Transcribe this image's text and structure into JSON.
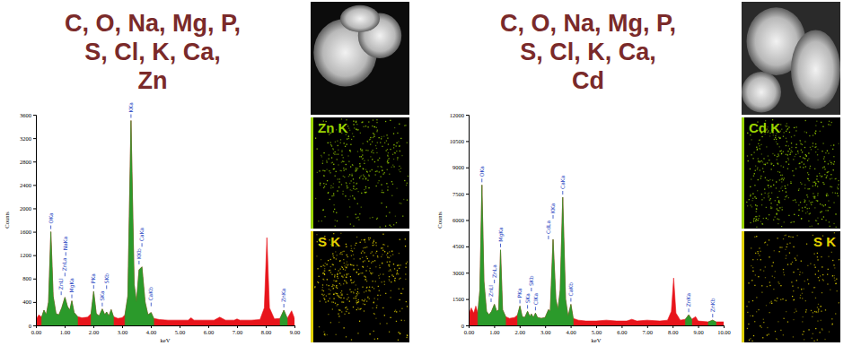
{
  "chart_data": [
    {
      "type": "area",
      "title": [
        "C, O, Na, Mg, P,",
        "S, Cl, K, Ca,",
        "Zn"
      ],
      "xlabel": "keV",
      "ylabel": "Counts",
      "x": [
        0,
        0.1,
        0.2,
        0.28,
        0.36,
        0.44,
        0.52,
        0.6,
        0.7,
        0.8,
        0.9,
        1.01,
        1.1,
        1.18,
        1.25,
        1.33,
        1.45,
        1.6,
        1.8,
        1.92,
        2.01,
        2.1,
        2.2,
        2.31,
        2.4,
        2.46,
        2.54,
        2.62,
        2.7,
        2.85,
        3.0,
        3.1,
        3.2,
        3.31,
        3.42,
        3.5,
        3.59,
        3.69,
        3.8,
        3.9,
        4.01,
        4.1,
        4.3,
        4.6,
        5.0,
        5.3,
        5.4,
        5.5,
        5.8,
        6.2,
        6.4,
        6.6,
        6.9,
        7.0,
        7.1,
        7.5,
        7.8,
        7.95,
        8.04,
        8.13,
        8.3,
        8.5,
        8.63,
        8.75,
        8.9,
        9.0
      ],
      "series": [
        {
          "color": "#e8141b",
          "values": [
            100,
            180,
            140,
            260,
            180,
            400,
            1600,
            500,
            200,
            180,
            300,
            480,
            320,
            260,
            420,
            220,
            150,
            130,
            140,
            200,
            580,
            200,
            160,
            280,
            180,
            230,
            160,
            270,
            150,
            120,
            130,
            180,
            500,
            3500,
            700,
            400,
            950,
            1000,
            400,
            180,
            220,
            120,
            100,
            90,
            90,
            90,
            130,
            90,
            90,
            90,
            140,
            90,
            90,
            110,
            90,
            90,
            100,
            300,
            1500,
            300,
            110,
            120,
            260,
            120,
            250,
            120
          ]
        },
        {
          "color": "#2b9a2b",
          "values": [
            null,
            null,
            140,
            260,
            180,
            400,
            1600,
            500,
            200,
            180,
            300,
            480,
            320,
            260,
            420,
            220,
            150,
            null,
            null,
            200,
            580,
            200,
            160,
            280,
            180,
            230,
            160,
            270,
            150,
            null,
            null,
            180,
            500,
            3500,
            700,
            400,
            950,
            1000,
            400,
            180,
            220,
            120,
            null,
            null,
            null,
            null,
            null,
            null,
            null,
            null,
            null,
            null,
            null,
            null,
            null,
            null,
            null,
            null,
            null,
            null,
            null,
            120,
            260,
            120,
            null,
            null
          ]
        }
      ],
      "xlim": [
        0,
        9
      ],
      "xticks": [
        {
          "value": 0,
          "label": "0.00"
        },
        {
          "value": 1,
          "label": "1.00"
        },
        {
          "value": 2,
          "label": "2.00"
        },
        {
          "value": 3,
          "label": "3.00"
        },
        {
          "value": 4,
          "label": "4.00"
        },
        {
          "value": 5,
          "label": "5.00"
        },
        {
          "value": 6,
          "label": "6.00"
        },
        {
          "value": 7,
          "label": "7.00"
        },
        {
          "value": 8,
          "label": "8.00"
        },
        {
          "value": 9,
          "label": "9.00"
        }
      ],
      "ylim": [
        0,
        3600
      ],
      "yticks": [
        0,
        400,
        800,
        1200,
        1600,
        2000,
        2400,
        2800,
        3200,
        3600
      ],
      "grid": false,
      "annotations": [
        {
          "text": "OKa",
          "x": 0.52
        },
        {
          "text": "ZnLl",
          "x": 0.88
        },
        {
          "text": "ZnLa",
          "x": 1.01
        },
        {
          "text": "NaKa",
          "x": 1.04
        },
        {
          "text": "MgKa",
          "x": 1.25
        },
        {
          "text": "PKa",
          "x": 2.01
        },
        {
          "text": "SKa",
          "x": 2.31
        },
        {
          "text": "SKb",
          "x": 2.46
        },
        {
          "text": "KKa",
          "x": 3.31
        },
        {
          "text": "KKb",
          "x": 3.59
        },
        {
          "text": "CaKa",
          "x": 3.69
        },
        {
          "text": "CaKb",
          "x": 4.01
        },
        {
          "text": "ZnKa",
          "x": 8.63
        }
      ],
      "maps": [
        {
          "label": "Zn K",
          "color": "#9ad400"
        },
        {
          "label": "S K",
          "color": "#e0d000"
        }
      ]
    },
    {
      "type": "area",
      "title": [
        "C, O, Na, Mg, P,",
        "S, Cl, K, Ca,",
        "Cd"
      ],
      "xlabel": "keV",
      "ylabel": "Counts",
      "x": [
        0,
        0.1,
        0.2,
        0.28,
        0.36,
        0.44,
        0.52,
        0.6,
        0.7,
        0.8,
        0.9,
        1.01,
        1.1,
        1.18,
        1.25,
        1.33,
        1.45,
        1.6,
        1.8,
        1.92,
        2.01,
        2.1,
        2.2,
        2.31,
        2.4,
        2.46,
        2.54,
        2.62,
        2.7,
        2.85,
        3.0,
        3.13,
        3.2,
        3.31,
        3.42,
        3.5,
        3.59,
        3.69,
        3.8,
        3.9,
        4.01,
        4.1,
        4.3,
        4.6,
        5.0,
        5.4,
        5.8,
        6.2,
        6.4,
        6.6,
        7.0,
        7.5,
        7.8,
        7.95,
        8.04,
        8.13,
        8.3,
        8.5,
        8.63,
        8.75,
        8.9,
        9.0,
        9.4,
        9.57,
        9.7,
        10.0
      ],
      "series": [
        {
          "color": "#e8141b",
          "values": [
            600,
            1000,
            700,
            1100,
            700,
            2000,
            8000,
            2500,
            800,
            600,
            800,
            1200,
            800,
            900,
            4300,
            900,
            500,
            400,
            450,
            600,
            1100,
            500,
            450,
            800,
            500,
            650,
            450,
            700,
            450,
            400,
            450,
            900,
            800,
            4900,
            1500,
            900,
            2000,
            7300,
            1500,
            500,
            1200,
            400,
            300,
            250,
            250,
            300,
            250,
            250,
            350,
            250,
            300,
            250,
            300,
            800,
            2700,
            700,
            300,
            350,
            600,
            350,
            500,
            250,
            200,
            300,
            200,
            200
          ]
        },
        {
          "color": "#2b9a2b",
          "values": [
            null,
            null,
            null,
            null,
            700,
            2000,
            8000,
            2500,
            800,
            600,
            800,
            1200,
            800,
            900,
            4300,
            900,
            500,
            null,
            null,
            600,
            1100,
            500,
            450,
            800,
            500,
            650,
            450,
            700,
            450,
            400,
            450,
            900,
            800,
            4900,
            1500,
            900,
            2000,
            7300,
            1500,
            500,
            1200,
            400,
            null,
            null,
            null,
            null,
            null,
            null,
            null,
            null,
            null,
            null,
            null,
            null,
            null,
            null,
            null,
            350,
            600,
            350,
            null,
            null,
            200,
            300,
            200,
            null
          ]
        }
      ],
      "xlim": [
        0,
        10
      ],
      "xticks": [
        {
          "value": 0,
          "label": "0.00"
        },
        {
          "value": 1,
          "label": "1.00"
        },
        {
          "value": 2,
          "label": "2.00"
        },
        {
          "value": 3,
          "label": "3.00"
        },
        {
          "value": 4,
          "label": "4.00"
        },
        {
          "value": 5,
          "label": "5.00"
        },
        {
          "value": 6,
          "label": "6.00"
        },
        {
          "value": 7,
          "label": "7.00"
        },
        {
          "value": 8,
          "label": "8.00"
        },
        {
          "value": 9,
          "label": "9.00"
        },
        {
          "value": 10,
          "label": "10.00"
        }
      ],
      "ylim": [
        0,
        12000
      ],
      "yticks": [
        0,
        1500,
        3000,
        4500,
        6000,
        7500,
        9000,
        10500,
        12000
      ],
      "grid": false,
      "annotations": [
        {
          "text": "OKa",
          "x": 0.52
        },
        {
          "text": "ZnLl",
          "x": 0.88
        },
        {
          "text": "ZnLa",
          "x": 1.01
        },
        {
          "text": "MgKa",
          "x": 1.25
        },
        {
          "text": "PKa",
          "x": 2.01
        },
        {
          "text": "SKa",
          "x": 2.31
        },
        {
          "text": "SKb",
          "x": 2.46
        },
        {
          "text": "ClKa",
          "x": 2.62
        },
        {
          "text": "CdLa",
          "x": 3.13
        },
        {
          "text": "KKa",
          "x": 3.31
        },
        {
          "text": "CaKa",
          "x": 3.69
        },
        {
          "text": "CaKb",
          "x": 4.01
        },
        {
          "text": "ZnKa",
          "x": 8.63
        },
        {
          "text": "ZnKb",
          "x": 9.57
        }
      ],
      "maps": [
        {
          "label": "Cd K",
          "color": "#9ad400"
        },
        {
          "label": "S K",
          "color": "#e0d000"
        }
      ]
    }
  ]
}
